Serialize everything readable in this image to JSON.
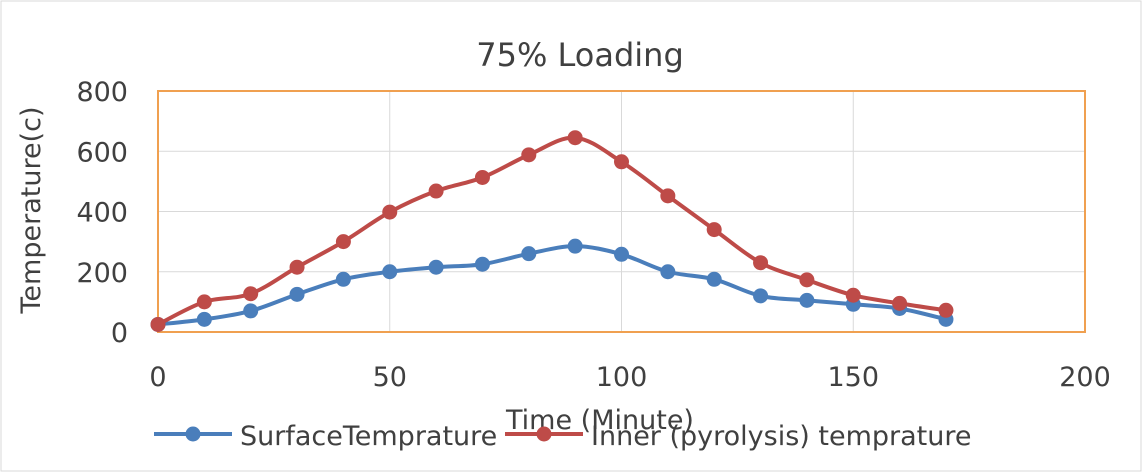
{
  "chart_data": {
    "type": "line",
    "title": "75% Loading",
    "xlabel": "Time (Minute)",
    "ylabel": "Temperature(c)",
    "xlim": [
      0,
      200
    ],
    "ylim": [
      0,
      800
    ],
    "xticks": [
      "0",
      "50",
      "100",
      "150",
      "200"
    ],
    "yticks": [
      "0",
      "200",
      "400",
      "600",
      "800"
    ],
    "grid": "vertical-and-horizontal",
    "legend_position": "bottom",
    "x": [
      0,
      10,
      20,
      30,
      40,
      50,
      60,
      70,
      80,
      90,
      100,
      110,
      120,
      130,
      140,
      150,
      160,
      170
    ],
    "series": [
      {
        "name": "SurfaceTemprature",
        "color": "#4a7ebb",
        "values": [
          25,
          42,
          70,
          125,
          175,
          200,
          215,
          225,
          260,
          285,
          258,
          200,
          175,
          120,
          105,
          92,
          78,
          42
        ]
      },
      {
        "name": "Inner (pyrolysis) temprature",
        "color": "#be4b48",
        "values": [
          25,
          100,
          127,
          215,
          300,
          398,
          468,
          513,
          588,
          645,
          565,
          452,
          340,
          230,
          173,
          122,
          95,
          72
        ]
      }
    ],
    "plot_border_color": "#f0a050"
  }
}
